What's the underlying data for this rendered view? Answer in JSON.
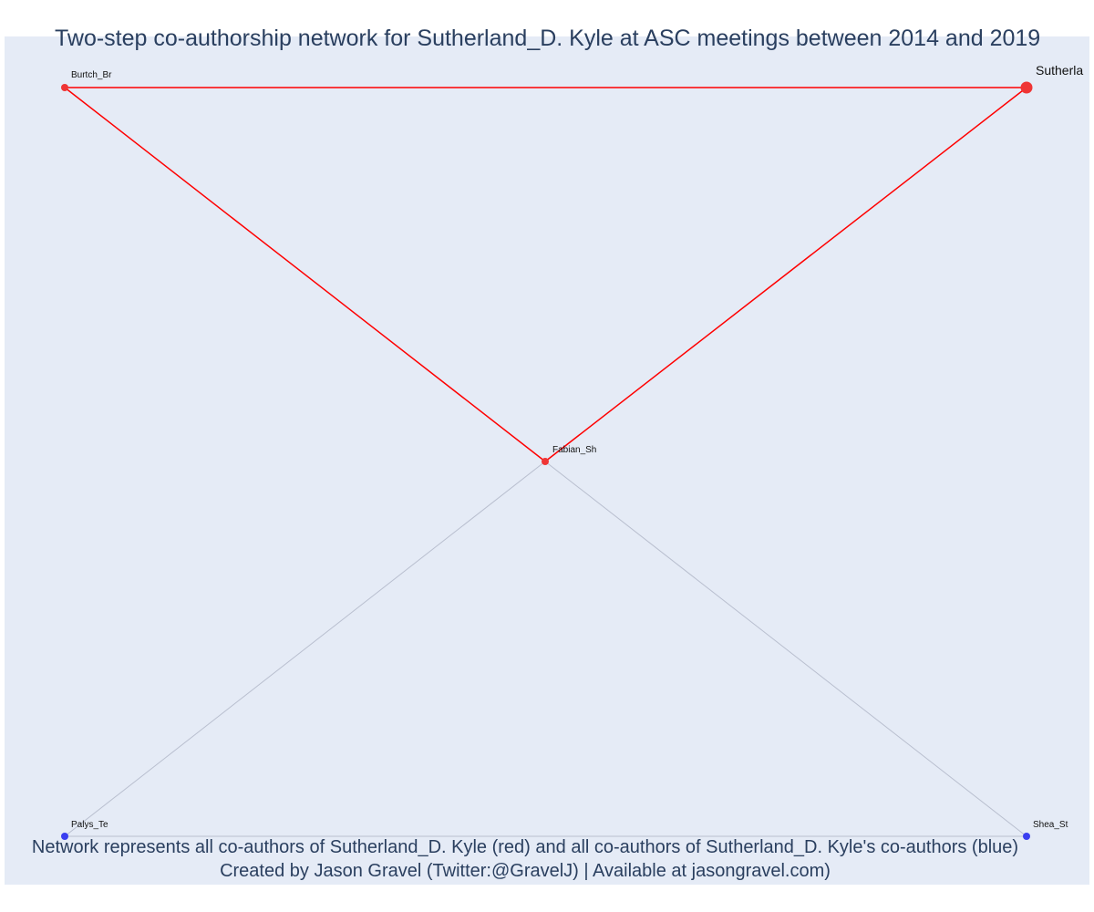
{
  "title": "Two-step co-authorship network for Sutherland_D. Kyle at ASC meetings between 2014 and 2019",
  "caption": {
    "line1": "Network represents all co-authors of Sutherland_D. Kyle (red) and all co-authors of Sutherland_D. Kyle's co-authors (blue)",
    "line2": "Created by Jason Gravel (Twitter:@GravelJ) | Available at jasongravel.com)"
  },
  "colors": {
    "direct": "#ff0000",
    "direct_node": "#ef3535",
    "second_step": "#3a3ef0",
    "second_step_edge": "#b9bfcf",
    "background": "#e5ebf6",
    "text": "#2a3f5f"
  },
  "network": {
    "nodes": [
      {
        "id": "Sutherla",
        "label": "Sutherla",
        "group": "focal"
      },
      {
        "id": "Burtch_Br",
        "label": "Burtch_Br",
        "group": "direct"
      },
      {
        "id": "Fabian_Sh",
        "label": "Fabian_Sh",
        "group": "direct"
      },
      {
        "id": "Palys_Te",
        "label": "Palys_Te",
        "group": "second_step"
      },
      {
        "id": "Shea_St",
        "label": "Shea_St",
        "group": "second_step"
      }
    ],
    "edges": [
      {
        "source": "Burtch_Br",
        "target": "Sutherla",
        "group": "direct"
      },
      {
        "source": "Burtch_Br",
        "target": "Fabian_Sh",
        "group": "direct"
      },
      {
        "source": "Sutherla",
        "target": "Fabian_Sh",
        "group": "direct"
      },
      {
        "source": "Fabian_Sh",
        "target": "Palys_Te",
        "group": "second_step"
      },
      {
        "source": "Fabian_Sh",
        "target": "Shea_St",
        "group": "second_step"
      },
      {
        "source": "Palys_Te",
        "target": "Shea_St",
        "group": "second_step"
      }
    ]
  }
}
